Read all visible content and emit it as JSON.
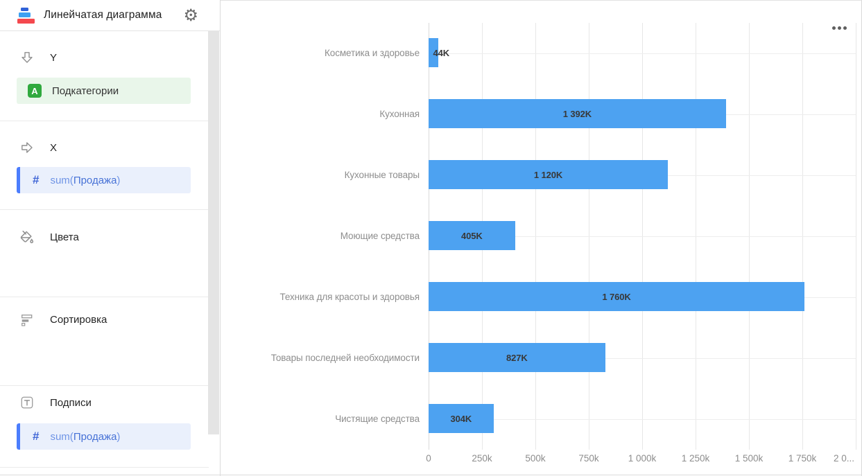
{
  "header": {
    "title": "Линейчатая диаграмма",
    "logo_icon": "bar-chart-logo",
    "gear_icon": "⚙"
  },
  "sidebar": {
    "sections": [
      {
        "label": "Y",
        "icon": "arrow-down-icon",
        "fields": [
          {
            "badge": "A",
            "text": "Подкатегории",
            "type": "dimension"
          }
        ]
      },
      {
        "label": "X",
        "icon": "arrow-right-icon",
        "fields": [
          {
            "hash_icon": "#",
            "fn": "sum(",
            "name": "Продажа",
            "close": ")",
            "type": "measure"
          }
        ]
      },
      {
        "label": "Цвета",
        "icon": "paint-bucket-icon",
        "fields": []
      },
      {
        "label": "Сортировка",
        "icon": "sort-bars-icon",
        "fields": []
      },
      {
        "label": "Подписи",
        "icon": "text-label-icon",
        "fields": [
          {
            "hash_icon": "#",
            "fn": "sum(",
            "name": "Продажа",
            "close": ")",
            "type": "measure"
          }
        ]
      }
    ]
  },
  "chart": {
    "menu_icon": "ellipsis-horizontal"
  },
  "chart_data": {
    "type": "bar",
    "orientation": "horizontal",
    "title": "",
    "xlabel": "",
    "ylabel": "",
    "categories": [
      "Косметика и здоровье",
      "Кухонная",
      "Кухонные товары",
      "Моющие средства",
      "Техника для красоты и здоровья",
      "Товары последней необходимости",
      "Чистящие средства"
    ],
    "values": [
      44,
      1392,
      1120,
      405,
      1760,
      827,
      304
    ],
    "value_unit": "K",
    "value_labels": [
      "44K",
      "1 392K",
      "1 120K",
      "405K",
      "1 760K",
      "827K",
      "304K"
    ],
    "x_ticks": [
      "0",
      "250k",
      "500k",
      "750k",
      "1 000k",
      "1 250k",
      "1 500k",
      "1 750k",
      "2 0..."
    ],
    "xlim": [
      0,
      2000
    ],
    "grid": true,
    "legend": false,
    "bar_color": "#4DA2F1"
  },
  "colors": {
    "bar": "#4DA2F1",
    "measure_accent": "#4B7DFD",
    "measure_bg": "#EAF0FC",
    "measure_fn": "#6F94E6",
    "measure_name": "#4671D6",
    "dimension_bg": "#E9F6EA",
    "dimension_badge": "#30A93E",
    "category_label": "#8D8D8D",
    "value_label": "#383838",
    "grid_line": "#E7E7E7",
    "axis_line": "#DADADA"
  }
}
